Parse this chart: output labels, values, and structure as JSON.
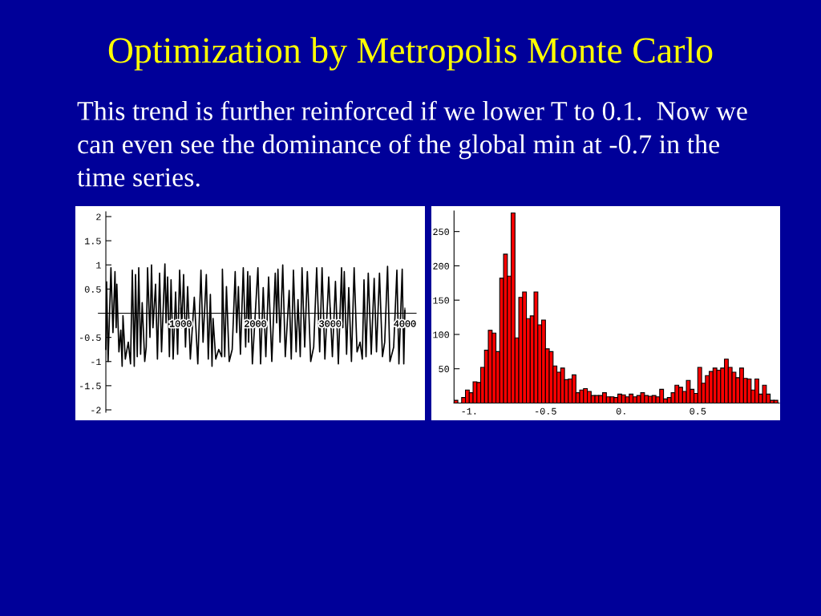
{
  "chart_data": [
    {
      "type": "line",
      "title": "Optimization by Metropolis Monte Carlo",
      "subtitle": "This trend is further reinforced if we lower T to 0.1.  Now we\ncan even see the dominance of the global min at -0.7 in the\ntime series.",
      "x": [
        0,
        10,
        30,
        68,
        95,
        122,
        138,
        147,
        175,
        200,
        218,
        229,
        260,
        300,
        330,
        354,
        380,
        397,
        420,
        440,
        465,
        486,
        520,
        540,
        558,
        590,
        611,
        630,
        665,
        690,
        719,
        745,
        790,
        805,
        826,
        850,
        872,
        900,
        933,
        960,
        987,
        1015,
        1040,
        1065,
        1094,
        1130,
        1183,
        1230,
        1272,
        1300,
        1344,
        1370,
        1398,
        1420,
        1434,
        1470,
        1510,
        1550,
        1559,
        1590,
        1613,
        1650,
        1690,
        1730,
        1750,
        1773,
        1800,
        1838,
        1870,
        1898,
        1910,
        1927,
        1960,
        2034,
        2070,
        2105,
        2140,
        2177,
        2220,
        2266,
        2285,
        2302,
        2330,
        2366,
        2400,
        2452,
        2480,
        2509,
        2545,
        2570,
        2600,
        2624,
        2660,
        2695,
        2740,
        2780,
        2820,
        2860,
        2892,
        2930,
        2981,
        3030,
        3071,
        3110,
        3153,
        3170,
        3189,
        3220,
        3249,
        3285,
        3321,
        3360,
        3400,
        3430,
        3453,
        3480,
        3510,
        3550,
        3589,
        3620,
        3660,
        3700,
        3730,
        3768,
        3800,
        3850,
        3893,
        3920,
        3964,
        3985,
        4000
      ],
      "values": [
        -0.75,
        0.65,
        -1.0,
        0.94,
        -0.4,
        0.86,
        -0.3,
        0.6,
        -0.8,
        -0.35,
        -1.1,
        -0.05,
        -0.95,
        -0.6,
        -1.05,
        0.89,
        -1.1,
        0.8,
        -0.9,
        0.94,
        -0.85,
        0.22,
        -1.0,
        -0.7,
        0.94,
        -0.5,
        1.0,
        -0.3,
        0.6,
        -0.95,
        0.83,
        -0.8,
        1.02,
        -0.2,
        0.75,
        -0.9,
        0.69,
        -0.95,
        0.44,
        -0.85,
        0.89,
        -0.3,
        0.8,
        -0.7,
        0.55,
        -0.95,
        0.33,
        -1.05,
        0.89,
        -0.6,
        0.8,
        -0.95,
        0.39,
        -1.1,
        -0.11,
        -0.95,
        -0.75,
        -0.9,
        0.91,
        -0.9,
        0.55,
        -1.0,
        -0.75,
        0.86,
        -0.4,
        0.55,
        -0.85,
        0.94,
        -0.7,
        0.86,
        -0.6,
        0.77,
        -1.05,
        0.94,
        -1.05,
        0.53,
        -0.9,
        0.75,
        -1.0,
        0.83,
        -0.2,
        0.91,
        -0.6,
        1.0,
        -0.9,
        0.47,
        -0.95,
        0.89,
        -0.8,
        0.28,
        -0.9,
        0.94,
        -0.7,
        0.86,
        -1.0,
        -0.7,
        0.94,
        -0.8,
        0.94,
        -0.95,
        0.75,
        -0.9,
        0.66,
        -1.05,
        0.94,
        -0.3,
        0.86,
        -0.85,
        0.53,
        -1.0,
        0.94,
        -0.8,
        -0.6,
        -0.95,
        0.69,
        -0.9,
        0.83,
        -0.85,
        0.72,
        -0.8,
        0.83,
        -0.9,
        -0.6,
        0.97,
        -1.0,
        -0.7,
        0.89,
        -1.05,
        0.91,
        -1.05,
        0.06
      ],
      "color": "#000000",
      "xlim": [
        -100,
        4150
      ],
      "ylim": [
        -2.05,
        2.1
      ],
      "xticks": [
        1000,
        2000,
        3000,
        4000
      ],
      "yticks": [
        -2,
        -1.5,
        -1,
        -0.5,
        0.5,
        1,
        1.5,
        2
      ]
    },
    {
      "type": "histogram",
      "bins": [
        -1.1,
        -1.075,
        -1.05,
        -1.025,
        -1.0,
        -0.975,
        -0.95,
        -0.925,
        -0.9,
        -0.875,
        -0.85,
        -0.825,
        -0.8,
        -0.775,
        -0.75,
        -0.725,
        -0.7,
        -0.675,
        -0.65,
        -0.625,
        -0.6,
        -0.575,
        -0.55,
        -0.525,
        -0.5,
        -0.475,
        -0.45,
        -0.425,
        -0.4,
        -0.375,
        -0.35,
        -0.325,
        -0.3,
        -0.275,
        -0.25,
        -0.225,
        -0.2,
        -0.175,
        -0.15,
        -0.125,
        -0.1,
        -0.075,
        -0.05,
        -0.025,
        0,
        0.025,
        0.05,
        0.075,
        0.1,
        0.125,
        0.15,
        0.175,
        0.2,
        0.225,
        0.25,
        0.275,
        0.3,
        0.325,
        0.35,
        0.375,
        0.4,
        0.425,
        0.45,
        0.475,
        0.5,
        0.525,
        0.55,
        0.575,
        0.6,
        0.625,
        0.65,
        0.675,
        0.7,
        0.725,
        0.75,
        0.775,
        0.8,
        0.825,
        0.85,
        0.875,
        0.9,
        0.925,
        0.95,
        0.975,
        1.0,
        1.025
      ],
      "values": [
        4,
        0,
        8,
        19,
        15,
        31,
        30,
        52,
        77,
        106,
        102,
        75,
        182,
        217,
        185,
        277,
        95,
        154,
        162,
        123,
        127,
        162,
        114,
        121,
        79,
        75,
        54,
        45,
        51,
        34,
        35,
        41,
        15,
        19,
        21,
        17,
        11,
        11,
        11,
        15,
        9,
        9,
        8,
        13,
        12,
        9,
        13,
        9,
        11,
        15,
        11,
        10,
        11,
        9,
        20,
        6,
        8,
        15,
        26,
        23,
        17,
        33,
        20,
        14,
        52,
        29,
        40,
        46,
        51,
        48,
        51,
        64,
        52,
        45,
        37,
        51,
        36,
        35,
        19,
        35,
        13,
        26,
        13,
        4,
        4
      ],
      "color": "#ff0000",
      "xlim": [
        -1.1,
        1.035
      ],
      "ylim": [
        0,
        280
      ],
      "xticks": [
        {
          "value": -1,
          "label": "-1."
        },
        {
          "value": -0.5,
          "label": "-0.5"
        },
        {
          "value": 0,
          "label": "0."
        },
        {
          "value": 0.5,
          "label": "0.5"
        }
      ],
      "yticks": [
        50,
        100,
        150,
        200,
        250
      ]
    }
  ]
}
